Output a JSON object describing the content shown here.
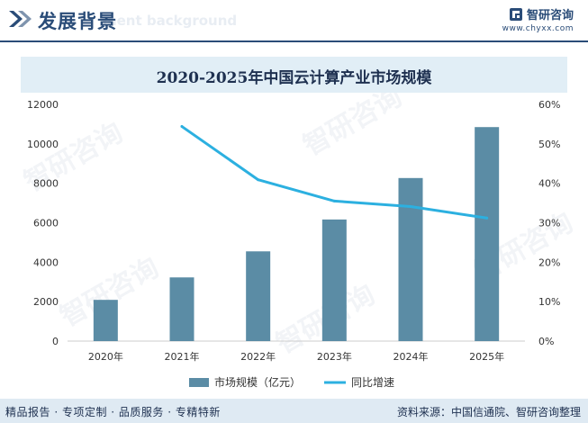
{
  "header": {
    "title": "发展背景",
    "ghost_text": "ment background"
  },
  "brand": {
    "name": "智研咨询",
    "url": "www.chyxx.com",
    "color": "#2a4c78"
  },
  "watermark": "智研咨询",
  "chart_data": {
    "type": "bar",
    "title": "2020-2025年中国云计算产业市场规模",
    "categories": [
      "2020年",
      "2021年",
      "2022年",
      "2023年",
      "2024年",
      "2025年"
    ],
    "series": [
      {
        "name": "市场规模（亿元）",
        "type": "bar",
        "axis": "left",
        "color": "#5b8ca5",
        "values": [
          2091,
          3229,
          4550,
          6165,
          8267,
          10850
        ]
      },
      {
        "name": "同比增速",
        "type": "line",
        "axis": "right",
        "color": "#2cb0e0",
        "values": [
          null,
          54.4,
          40.9,
          35.5,
          34.1,
          31.2
        ]
      }
    ],
    "yticks_left": [
      "0",
      "2000",
      "4000",
      "6000",
      "8000",
      "10000",
      "12000"
    ],
    "yticks_right": [
      "0%",
      "10%",
      "20%",
      "30%",
      "40%",
      "50%",
      "60%"
    ],
    "ylim_left": [
      0,
      12000
    ],
    "ylim_right": [
      0,
      60
    ],
    "xlabel": "",
    "ylabel": "",
    "grid": false,
    "legend_position": "bottom"
  },
  "footer": {
    "left": "精品报告 · 专项定制 · 品质服务 · 专精特新",
    "right": "资料来源：中国信通院、智研咨询整理"
  }
}
